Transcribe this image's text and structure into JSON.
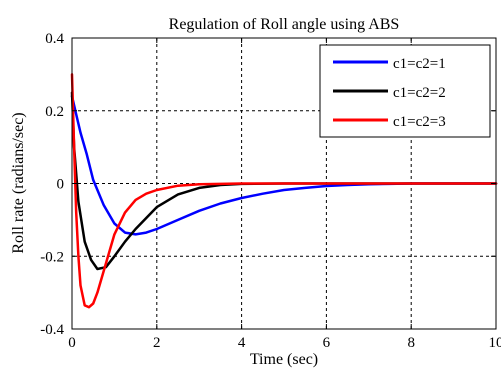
{
  "chart_data": {
    "type": "line",
    "title": "Regulation of Roll angle using ABS",
    "xlabel": "Time (sec)",
    "ylabel": "Roll rate (radians/sec)",
    "xlim": [
      0,
      10
    ],
    "ylim": [
      -0.4,
      0.4
    ],
    "xticks": [
      0,
      2,
      4,
      6,
      8,
      10
    ],
    "yticks": [
      -0.4,
      -0.2,
      0,
      0.2,
      0.4
    ],
    "xtick_labels": [
      "0",
      "2",
      "4",
      "6",
      "8",
      "10"
    ],
    "ytick_labels": [
      "-0.4",
      "-0.2",
      "0",
      "0.2",
      "0.4"
    ],
    "grid": true,
    "legend_position": "top-right",
    "series": [
      {
        "name": "c1=c2=1",
        "color": "#0000ff",
        "x": [
          0,
          0.1,
          0.2,
          0.35,
          0.5,
          0.75,
          1.0,
          1.25,
          1.5,
          1.75,
          2.0,
          2.5,
          3.0,
          3.5,
          4.0,
          4.5,
          5.0,
          5.5,
          6.0,
          6.5,
          7.0,
          7.5,
          8.0,
          9.0,
          10.0
        ],
        "y": [
          0.24,
          0.19,
          0.14,
          0.08,
          0.01,
          -0.06,
          -0.11,
          -0.135,
          -0.14,
          -0.135,
          -0.125,
          -0.1,
          -0.075,
          -0.055,
          -0.04,
          -0.028,
          -0.018,
          -0.012,
          -0.007,
          -0.004,
          -0.002,
          -0.001,
          0,
          0,
          0
        ]
      },
      {
        "name": "c1=c2=2",
        "color": "#000000",
        "x": [
          0,
          0.05,
          0.15,
          0.3,
          0.45,
          0.6,
          0.8,
          1.0,
          1.25,
          1.5,
          2.0,
          2.5,
          3.0,
          3.5,
          4.0,
          5.0,
          6.0,
          7.0,
          8.0,
          9.0,
          10.0
        ],
        "y": [
          0.25,
          0.1,
          -0.05,
          -0.16,
          -0.21,
          -0.235,
          -0.23,
          -0.2,
          -0.16,
          -0.125,
          -0.065,
          -0.03,
          -0.012,
          -0.004,
          -0.001,
          0,
          0,
          0,
          0,
          0,
          0
        ]
      },
      {
        "name": "c1=c2=3",
        "color": "#ff0000",
        "x": [
          0,
          0.05,
          0.1,
          0.15,
          0.2,
          0.3,
          0.4,
          0.5,
          0.6,
          0.8,
          1.0,
          1.25,
          1.5,
          1.75,
          2.0,
          2.5,
          3.0,
          4.0,
          5.0,
          6.0,
          7.0,
          8.0,
          9.0,
          10.0
        ],
        "y": [
          0.3,
          0.1,
          -0.08,
          -0.2,
          -0.28,
          -0.335,
          -0.34,
          -0.33,
          -0.3,
          -0.22,
          -0.14,
          -0.08,
          -0.045,
          -0.028,
          -0.018,
          -0.006,
          -0.002,
          0,
          0,
          0,
          0,
          0,
          0,
          0
        ]
      }
    ]
  }
}
